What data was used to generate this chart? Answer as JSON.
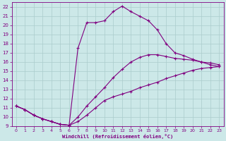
{
  "xlabel": "Windchill (Refroidissement éolien,°C)",
  "bg_color": "#cce8e8",
  "line_color": "#800080",
  "grid_color": "#aacccc",
  "xlim": [
    -0.5,
    23.5
  ],
  "ylim": [
    9,
    22.5
  ],
  "xticks": [
    0,
    1,
    2,
    3,
    4,
    5,
    6,
    7,
    8,
    9,
    10,
    11,
    12,
    13,
    14,
    15,
    16,
    17,
    18,
    19,
    20,
    21,
    22,
    23
  ],
  "yticks": [
    9,
    10,
    11,
    12,
    13,
    14,
    15,
    16,
    17,
    18,
    19,
    20,
    21,
    22
  ],
  "line1_x": [
    0,
    1,
    2,
    3,
    4,
    5,
    6,
    7,
    8,
    9,
    10,
    11,
    12,
    13,
    14,
    15,
    16,
    17,
    18,
    19,
    20,
    21,
    22,
    23
  ],
  "line1_y": [
    11.2,
    10.8,
    10.2,
    9.8,
    9.5,
    9.2,
    9.1,
    9.5,
    10.2,
    11.0,
    11.8,
    12.2,
    12.5,
    12.8,
    13.2,
    13.5,
    13.8,
    14.2,
    14.5,
    14.8,
    15.1,
    15.3,
    15.4,
    15.5
  ],
  "line2_x": [
    0,
    1,
    2,
    3,
    4,
    5,
    6,
    7,
    8,
    9,
    10,
    11,
    12,
    13,
    14,
    15,
    16,
    17,
    18,
    19,
    20,
    21,
    22,
    23
  ],
  "line2_y": [
    11.2,
    10.8,
    10.2,
    9.8,
    9.5,
    9.2,
    9.1,
    10.0,
    11.2,
    12.2,
    13.2,
    14.3,
    15.2,
    16.0,
    16.5,
    16.8,
    16.8,
    16.6,
    16.4,
    16.3,
    16.2,
    16.0,
    15.9,
    15.7
  ],
  "line3_x": [
    0,
    1,
    2,
    3,
    4,
    5,
    6,
    7,
    8,
    9,
    10,
    11,
    12,
    13,
    14,
    15,
    16,
    17,
    18,
    19,
    20,
    21,
    22,
    23
  ],
  "line3_y": [
    11.2,
    10.8,
    10.2,
    9.8,
    9.5,
    9.2,
    9.1,
    17.5,
    20.3,
    20.3,
    20.5,
    21.5,
    22.1,
    21.5,
    21.0,
    20.5,
    19.5,
    18.0,
    17.0,
    16.7,
    16.3,
    16.0,
    15.7,
    15.5
  ],
  "marker": "+",
  "markersize": 3,
  "linewidth": 0.8
}
